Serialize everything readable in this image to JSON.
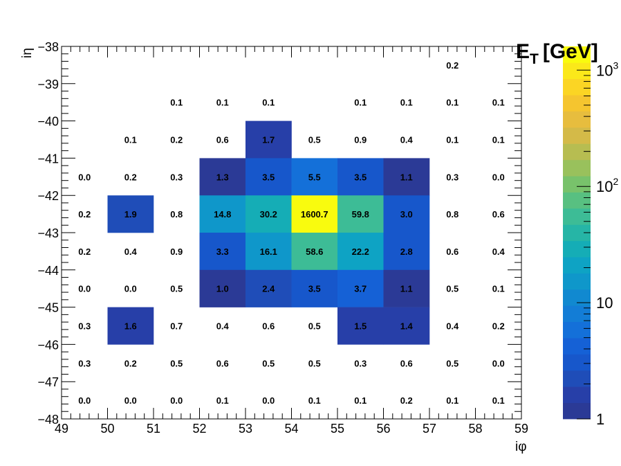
{
  "chart_data": {
    "type": "heatmap",
    "title": "",
    "xlabel": "iφ",
    "ylabel": "iη",
    "colorbar_label": "E_T [GeV]",
    "colorbar_scale": "log",
    "colorbar_range": [
      1,
      1600.7
    ],
    "colorbar_ticks": [
      {
        "value": 1,
        "label": "1"
      },
      {
        "value": 10,
        "label": "10"
      },
      {
        "value": 100,
        "label": "10",
        "sup": "2"
      },
      {
        "value": 1000,
        "label": "10",
        "sup": "3"
      }
    ],
    "xlim": [
      49,
      59
    ],
    "ylim": [
      -48,
      -38
    ],
    "x_ticks": [
      "49",
      "50",
      "51",
      "52",
      "53",
      "54",
      "55",
      "56",
      "57",
      "58",
      "59"
    ],
    "y_ticks": [
      "−38",
      "−39",
      "−40",
      "−41",
      "−42",
      "−43",
      "−44",
      "−45",
      "−46",
      "−47",
      "−48"
    ],
    "x_bins": [
      49,
      50,
      51,
      52,
      53,
      54,
      55,
      56,
      57,
      58
    ],
    "y_bins": [
      -39,
      -40,
      -41,
      -42,
      -43,
      -44,
      -45,
      -46,
      -47,
      -48
    ],
    "values": [
      [
        null,
        null,
        null,
        null,
        null,
        null,
        null,
        null,
        0.2,
        null
      ],
      [
        null,
        null,
        0.1,
        0.1,
        0.1,
        null,
        0.1,
        0.1,
        0.1,
        0.1
      ],
      [
        null,
        0.1,
        0.2,
        0.6,
        1.7,
        0.5,
        0.9,
        0.4,
        0.1,
        0.1
      ],
      [
        0.0,
        0.2,
        0.3,
        1.3,
        3.5,
        5.5,
        3.5,
        1.1,
        0.3,
        0.0
      ],
      [
        0.2,
        1.9,
        0.8,
        14.8,
        30.2,
        1600.7,
        59.8,
        3.0,
        0.8,
        0.6
      ],
      [
        0.2,
        0.4,
        0.9,
        3.3,
        16.1,
        58.6,
        22.2,
        2.8,
        0.6,
        0.4
      ],
      [
        0.0,
        0.0,
        0.5,
        1.0,
        2.4,
        3.5,
        3.7,
        1.1,
        0.5,
        0.1
      ],
      [
        0.3,
        1.6,
        0.7,
        0.4,
        0.6,
        0.5,
        1.5,
        1.4,
        0.4,
        0.2
      ],
      [
        0.3,
        0.2,
        0.5,
        0.6,
        0.5,
        0.5,
        0.3,
        0.6,
        0.5,
        0.0
      ],
      [
        0.0,
        0.0,
        0.0,
        0.1,
        0.0,
        0.1,
        0.1,
        0.2,
        0.1,
        0.1
      ]
    ],
    "palette": [
      "#2b3a96",
      "#273fa8",
      "#1f4db8",
      "#1757cb",
      "#1561d6",
      "#1470d9",
      "#137dd6",
      "#1189d0",
      "#0f97ca",
      "#0ea3c4",
      "#15adb6",
      "#26b5a6",
      "#3dbc96",
      "#58c081",
      "#78c26b",
      "#99c15c",
      "#b7bd51",
      "#d4ba48",
      "#e7bd3e",
      "#f5c52f",
      "#fbd524",
      "#fbe81a",
      "#f9fb0e"
    ]
  }
}
